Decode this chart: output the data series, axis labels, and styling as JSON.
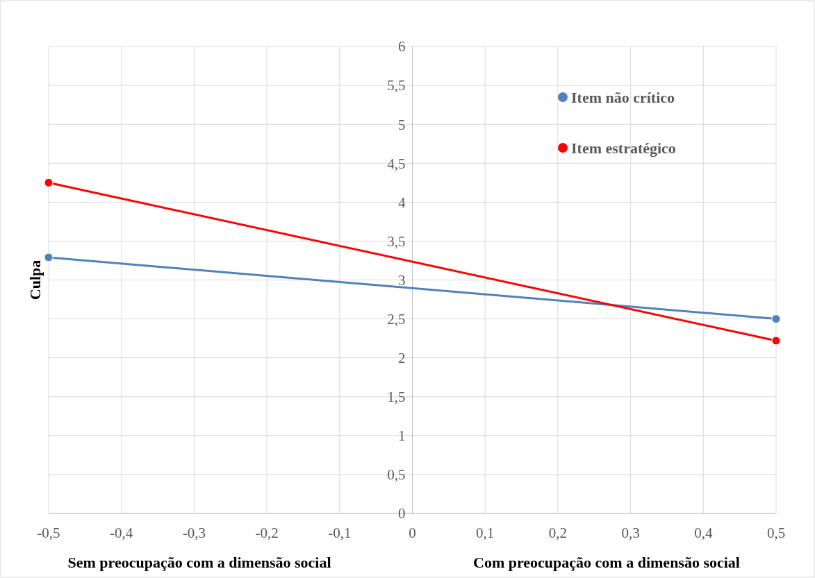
{
  "chart_data": {
    "type": "line",
    "ylabel": "Culpa",
    "annotations": [
      "Sem preocupação com a dimensão social",
      "Com preocupação com a dimensão social"
    ],
    "x": [
      -0.5,
      0.5
    ],
    "series": [
      {
        "name": "Item não crítico",
        "color": "#4f81bd",
        "values": [
          3.29,
          2.5
        ]
      },
      {
        "name": "Item estratégico",
        "color": "#ff0000",
        "values": [
          4.25,
          2.22
        ]
      }
    ],
    "xlim": [
      -0.5,
      0.5
    ],
    "xticks": [
      {
        "value": -0.5,
        "label": "-0,5"
      },
      {
        "value": -0.4,
        "label": "-0,4"
      },
      {
        "value": -0.3,
        "label": "-0,3"
      },
      {
        "value": -0.2,
        "label": "-0,2"
      },
      {
        "value": -0.1,
        "label": "-0,1"
      },
      0,
      {
        "value": 0.1,
        "label": "0,1"
      },
      {
        "value": 0.2,
        "label": "0,2"
      },
      {
        "value": 0.3,
        "label": "0,3"
      },
      {
        "value": 0.4,
        "label": "0,4"
      },
      {
        "value": 0.5,
        "label": "0,5"
      }
    ],
    "ylim": [
      0,
      6
    ],
    "yticks": [
      0,
      {
        "value": 0.5,
        "label": "0,5"
      },
      1,
      {
        "value": 1.5,
        "label": "1,5"
      },
      2,
      {
        "value": 2.5,
        "label": "2,5"
      },
      3,
      {
        "value": 3.5,
        "label": "3,5"
      },
      4,
      {
        "value": 4.5,
        "label": "4,5"
      },
      5,
      {
        "value": 5.5,
        "label": "5,5"
      },
      6
    ],
    "grid": true,
    "legend": "top right",
    "marker": "circle",
    "line_style": "solid"
  }
}
